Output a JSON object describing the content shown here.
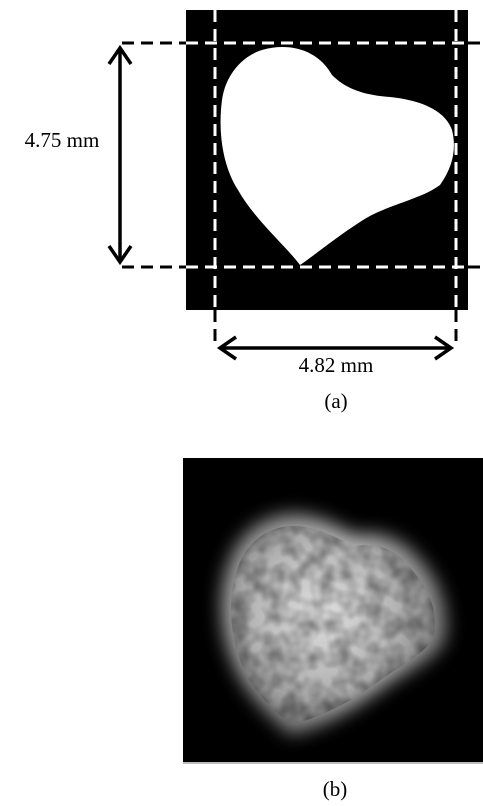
{
  "panel_a": {
    "height_label": "4.75 mm",
    "width_label": "4.82 mm",
    "caption": "(a)"
  },
  "panel_b": {
    "caption": "(b)"
  }
}
